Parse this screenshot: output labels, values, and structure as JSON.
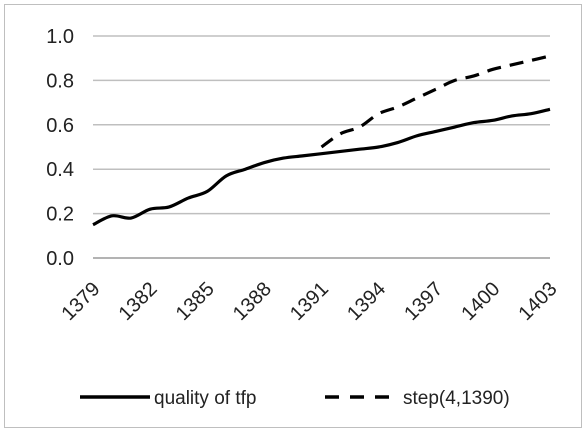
{
  "chart_data": {
    "type": "line",
    "title": "",
    "xlabel": "",
    "ylabel": "",
    "x": [
      1379,
      1380,
      1381,
      1382,
      1383,
      1384,
      1385,
      1386,
      1387,
      1388,
      1389,
      1390,
      1391,
      1392,
      1393,
      1394,
      1395,
      1396,
      1397,
      1398,
      1399,
      1400,
      1401,
      1402,
      1403
    ],
    "x_tick_labels": [
      "1379",
      "1382",
      "1385",
      "1388",
      "1391",
      "1394",
      "1397",
      "1400",
      "1403"
    ],
    "y_tick_labels": [
      "0.0",
      "0.2",
      "0.4",
      "0.6",
      "0.8",
      "1.0"
    ],
    "ylim": [
      0,
      1
    ],
    "grid": "horizontal",
    "legend_position": "bottom",
    "series": [
      {
        "name": "quality of tfp",
        "style": "solid",
        "color": "#000000",
        "x": [
          1379,
          1380,
          1381,
          1382,
          1383,
          1384,
          1385,
          1386,
          1387,
          1388,
          1389,
          1390,
          1391,
          1392,
          1393,
          1394,
          1395,
          1396,
          1397,
          1398,
          1399,
          1400,
          1401,
          1402,
          1403
        ],
        "values": [
          0.15,
          0.19,
          0.18,
          0.22,
          0.23,
          0.27,
          0.3,
          0.37,
          0.4,
          0.43,
          0.45,
          0.46,
          0.47,
          0.48,
          0.49,
          0.5,
          0.52,
          0.55,
          0.57,
          0.59,
          0.61,
          0.62,
          0.64,
          0.65,
          0.67
        ]
      },
      {
        "name": "step(4,1390)",
        "style": "dashed",
        "color": "#000000",
        "x": [
          1391,
          1392,
          1393,
          1394,
          1395,
          1396,
          1397,
          1398,
          1399,
          1400,
          1401,
          1402,
          1403
        ],
        "values": [
          0.5,
          0.56,
          0.59,
          0.65,
          0.68,
          0.72,
          0.76,
          0.8,
          0.82,
          0.85,
          0.87,
          0.89,
          0.91
        ]
      }
    ]
  }
}
